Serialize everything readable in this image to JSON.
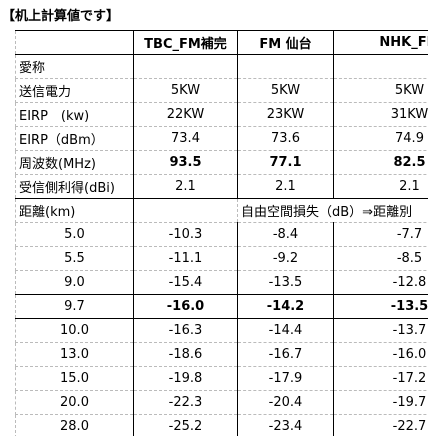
{
  "title": "【机上計算値です】",
  "table": {
    "header": [
      "TBC_FM補完",
      "FM 仙台",
      "NHK_FM"
    ],
    "rows": [
      {
        "label": "愛称"
      },
      {
        "label": "送信電力",
        "values": [
          "5KW",
          "5KW",
          "5KW"
        ]
      },
      {
        "label": "EIRP　(kw)",
        "values": [
          "22KW",
          "23KW",
          "31KW"
        ]
      },
      {
        "label": "EIRP（dBm）",
        "values": [
          "73.4",
          "73.6",
          "74.9"
        ]
      },
      {
        "label": "周波数(MHz)",
        "values": [
          "93.5",
          "77.1",
          "82.5"
        ],
        "bold": true
      },
      {
        "label": "受信側利得(dBi)",
        "values": [
          "2.1",
          "2.1",
          "2.1"
        ]
      }
    ]
  },
  "distance": {
    "label": "距離(km)",
    "note": "自由空間損失（dB）⇒距離別",
    "rows": [
      {
        "label": "5.0",
        "values": [
          "-10.3",
          "-8.4",
          "-7.7"
        ]
      },
      {
        "label": "5.5",
        "values": [
          "-11.1",
          "-9.2",
          "-8.5"
        ]
      },
      {
        "label": "9.0",
        "values": [
          "-15.4",
          "-13.5",
          "-12.8"
        ]
      },
      {
        "label": "9.7",
        "values": [
          "-16.0",
          "-14.2",
          "-13.5"
        ],
        "bold": true
      },
      {
        "label": "10.0",
        "values": [
          "-16.3",
          "-14.4",
          "-13.7"
        ]
      },
      {
        "label": "13.0",
        "values": [
          "-18.6",
          "-16.7",
          "-16.0"
        ]
      },
      {
        "label": "15.0",
        "values": [
          "-19.8",
          "-17.9",
          "-17.2"
        ]
      },
      {
        "label": "20.0",
        "values": [
          "-22.3",
          "-20.4",
          "-19.7"
        ]
      },
      {
        "label": "28.0",
        "values": [
          "-25.2",
          "-23.4",
          "-22.7"
        ]
      }
    ]
  }
}
